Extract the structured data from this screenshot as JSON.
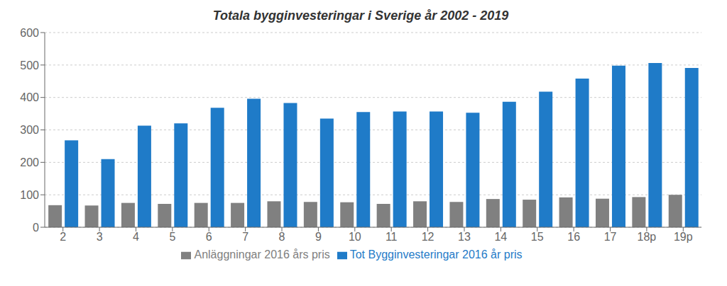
{
  "chart_data": {
    "type": "bar",
    "title": "Totala bygginvesteringar i Sverige år 2002 - 2019",
    "categories": [
      "2",
      "3",
      "4",
      "5",
      "6",
      "7",
      "8",
      "9",
      "10",
      "11",
      "12",
      "13",
      "14",
      "15",
      "16",
      "17",
      "18p",
      "19p"
    ],
    "series": [
      {
        "name": "Anläggningar 2016 års pris",
        "color": "#808080",
        "values": [
          68,
          67,
          75,
          72,
          75,
          75,
          80,
          78,
          77,
          72,
          80,
          78,
          87,
          85,
          92,
          88,
          93,
          100
        ]
      },
      {
        "name": "Tot Bygginvesteringar 2016 år pris",
        "color": "#1F7BC8",
        "values": [
          268,
          210,
          313,
          320,
          368,
          396,
          383,
          335,
          355,
          357,
          357,
          353,
          387,
          418,
          458,
          498,
          506,
          491
        ]
      }
    ],
    "ylim": [
      0,
      600
    ],
    "yticks": [
      0,
      100,
      200,
      300,
      400,
      500,
      600
    ],
    "grid": true,
    "legend": "bottom"
  }
}
